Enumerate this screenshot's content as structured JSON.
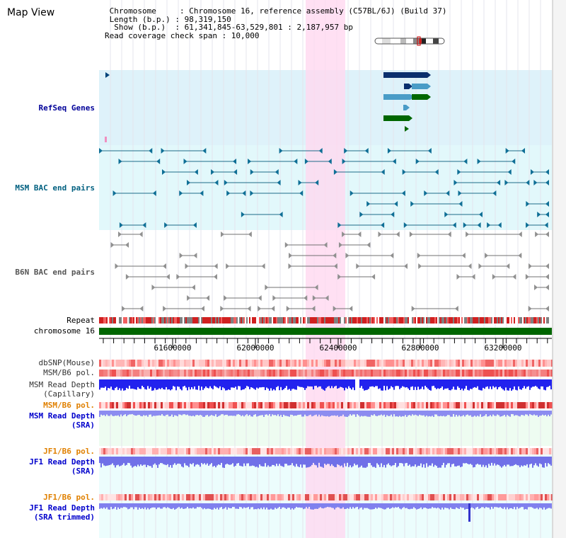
{
  "title": "Map View",
  "info": {
    "rows": [
      " Chromosome     : Chromosome 16, reference assembly (C57BL/6J) (Build 37)",
      " Length (b.p.) : 98,319,150",
      "  Show (b.p.)  : 61,341,845-63,529,801 : 2,187,957 bp",
      "Read coverage check span : 10,000"
    ]
  },
  "tracks": {
    "refseq": "RefSeq Genes",
    "msm_bac": "MSM BAC end pairs",
    "b6n_bac": "B6N BAC end pairs",
    "repeat": "Repeat",
    "chromosome": "chromosome 16",
    "dbsnp": "dbSNP(Mouse)",
    "msm_b6_pol": "MSM/B6 pol.",
    "msm_depth_cap_1": "MSM Read Depth",
    "msm_depth_cap_2": "(Capillary)",
    "msm_b6_pol_2": "MSM/B6 pol.",
    "msm_depth_sra_1": "MSM Read Depth",
    "msm_depth_sra_2": "(SRA)",
    "jf1_b6_pol": "JF1/B6 pol.",
    "jf1_depth_sra_1": "JF1 Read Depth",
    "jf1_depth_sra_2": "(SRA)",
    "jf1_b6_pol_2": "JF1/B6 pol.",
    "jf1_depth_trim_1": "JF1 Read Depth",
    "jf1_depth_trim_2": "(SRA trimmed)"
  },
  "axis": {
    "ticks": [
      "61600000",
      "62000000",
      "62400000",
      "62800000",
      "63200000"
    ]
  },
  "colors": {
    "refseq_label": "#000099",
    "msm_bac_label": "#006080",
    "b6n_bac_label": "#555555",
    "pol_orange": "#e08000",
    "depth_blue": "#0000cc",
    "highlight": "#ffd8f0",
    "chromosome_green": "#006600"
  }
}
